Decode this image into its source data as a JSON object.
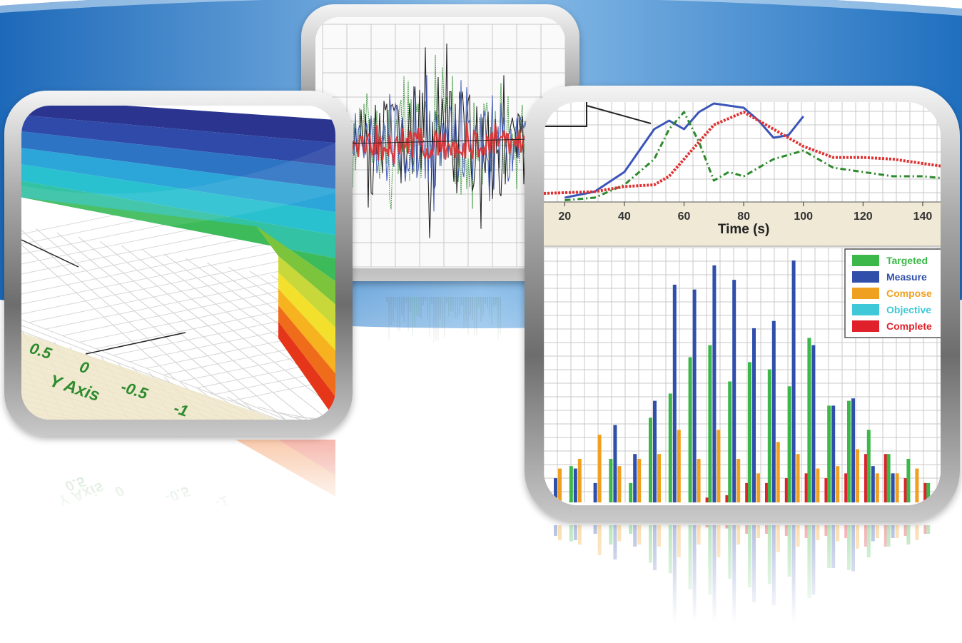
{
  "chart_data": [
    {
      "type": "surface",
      "title": "",
      "axis_label": "Y Axis",
      "tick_labels": [
        "0.5",
        "0",
        "-0.5",
        "-1"
      ],
      "color_bands": [
        "#2b3590",
        "#2f4aa8",
        "#2e74c4",
        "#2ca5d8",
        "#29c0d0",
        "#33c2a4",
        "#3dbb5a",
        "#7cc43c",
        "#c8d83a",
        "#f2e02c",
        "#f6b21f",
        "#ef6d1a",
        "#e5361a"
      ]
    },
    {
      "type": "line",
      "title": "",
      "series": [
        {
          "name": "",
          "color": "#2d8a2d",
          "amplitude": 0.85
        },
        {
          "name": "",
          "color": "#111111",
          "amplitude": 0.95
        },
        {
          "name": "",
          "color": "#3a55b8",
          "amplitude": 0.7
        },
        {
          "name": "",
          "color": "#e03030",
          "amplitude": 0.25
        }
      ]
    },
    {
      "type": "line",
      "title": "",
      "xlabel": "Time (s)",
      "x_ticks": [
        "20",
        "40",
        "60",
        "80",
        "100",
        "120",
        "140"
      ],
      "xlim": [
        13,
        146
      ],
      "series": [
        {
          "name": "",
          "color": "#3a55b8",
          "x": [
            20,
            30,
            40,
            45,
            50,
            55,
            60,
            65,
            70,
            80,
            85,
            90,
            95,
            100
          ],
          "y": [
            0.05,
            0.12,
            0.35,
            0.6,
            0.85,
            0.95,
            0.85,
            1.05,
            1.15,
            1.1,
            0.95,
            0.75,
            0.78,
            1.0
          ]
        },
        {
          "name": "",
          "color": "#2d8a2d",
          "x": [
            20,
            30,
            40,
            50,
            55,
            60,
            65,
            70,
            75,
            80,
            90,
            100,
            110,
            120,
            130,
            140,
            146
          ],
          "y": [
            0.02,
            0.05,
            0.2,
            0.5,
            0.85,
            1.05,
            0.7,
            0.25,
            0.35,
            0.3,
            0.5,
            0.6,
            0.4,
            0.35,
            0.3,
            0.3,
            0.28
          ]
        },
        {
          "name": "",
          "color": "#e03030",
          "x": [
            13,
            30,
            40,
            50,
            55,
            60,
            65,
            70,
            80,
            90,
            100,
            110,
            120,
            130,
            140,
            146
          ],
          "y": [
            0.1,
            0.12,
            0.18,
            0.2,
            0.3,
            0.5,
            0.7,
            0.9,
            1.05,
            0.85,
            0.65,
            0.52,
            0.52,
            0.5,
            0.45,
            0.42
          ]
        }
      ]
    },
    {
      "type": "bar",
      "title": "",
      "legend_position": "top-right",
      "ylim": [
        0,
        100
      ],
      "series": [
        {
          "name": "Targeted",
          "color": "#3cb84a",
          "values": [
            0,
            15,
            0,
            18,
            8,
            35,
            45,
            60,
            65,
            50,
            58,
            55,
            48,
            68,
            40,
            42,
            30,
            20,
            18,
            8
          ]
        },
        {
          "name": "Measure",
          "color": "#2f4faa",
          "values": [
            10,
            14,
            8,
            32,
            20,
            42,
            90,
            88,
            98,
            92,
            72,
            75,
            100,
            65,
            40,
            43,
            15,
            12,
            0,
            0
          ]
        },
        {
          "name": "Compose",
          "color": "#f0a020",
          "values": [
            14,
            18,
            28,
            15,
            18,
            20,
            30,
            18,
            30,
            18,
            12,
            25,
            20,
            14,
            15,
            22,
            12,
            12,
            14,
            0
          ]
        },
        {
          "name": "Objective",
          "color": "#3ec8d8",
          "values": [
            0,
            0,
            0,
            0,
            0,
            0,
            0,
            0,
            0,
            0,
            0,
            0,
            0,
            0,
            0,
            0,
            0,
            0,
            0,
            0
          ]
        },
        {
          "name": "Complete",
          "color": "#e0202a",
          "values": [
            0,
            0,
            0,
            0,
            0,
            0,
            0,
            2,
            3,
            8,
            8,
            10,
            12,
            10,
            12,
            20,
            20,
            10,
            8,
            0
          ]
        }
      ]
    }
  ]
}
